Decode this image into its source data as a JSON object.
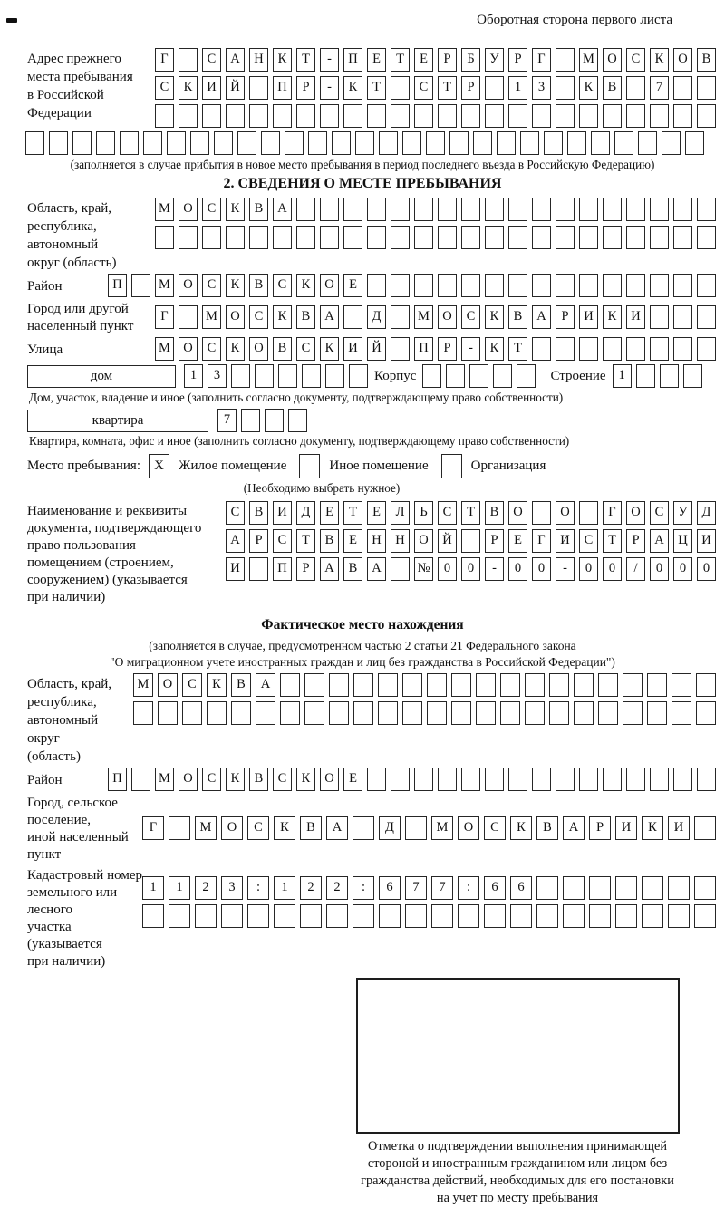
{
  "page": {
    "back_note": "Оборотная сторона первого листа"
  },
  "prev_address": {
    "label_lines": [
      "Адрес прежнего",
      "места пребывания",
      "в Российской",
      "Федерации"
    ],
    "rows": [
      {
        "cells": "Г САНКТ-ПЕТЕРБУРГ МОСКОВ",
        "len": 24
      },
      {
        "cells": "СКИЙ ПР-КТ СТР 13 КВ 7",
        "len": 24
      },
      {
        "cells": "",
        "len": 24
      }
    ],
    "overflow_row": {
      "cells": "",
      "len": 29
    },
    "caption": "(заполняется в случае прибытия в новое место пребывания в период последнего въезда в Российскую Федерацию)"
  },
  "section2": {
    "title": "2. СВЕДЕНИЯ О МЕСТЕ ПРЕБЫВАНИЯ",
    "region": {
      "label_lines": [
        "Область, край,",
        "республика,",
        "автономный",
        "округ (область)"
      ],
      "rows": [
        {
          "cells": "МОСКВА",
          "len": 24
        },
        {
          "cells": "",
          "len": 24
        }
      ]
    },
    "district": {
      "label": "Район",
      "row": {
        "cells": "П МОСКВСКОЕ",
        "len": 26
      }
    },
    "city": {
      "label_lines": [
        "Город или другой",
        "населенный пункт"
      ],
      "row": {
        "cells": "Г МОСКВА Д МОСКВАРИКИ",
        "len": 24
      }
    },
    "street": {
      "label": "Улица",
      "row": {
        "cells": "МОСКОВСКИЙ ПР-КТ",
        "len": 24
      }
    },
    "house": {
      "box_label": "дом",
      "num": {
        "cells": "13",
        "len": 8
      },
      "korpus_label": "Корпус",
      "korpus": {
        "cells": "",
        "len": 5
      },
      "stroenie_label": "Строение",
      "stroenie": {
        "cells": "1",
        "len": 4
      },
      "caption": "Дом, участок, владение и иное (заполнить согласно документу, подтверждающему право собственности)"
    },
    "apartment": {
      "box_label": "квартира",
      "num": {
        "cells": "7",
        "len": 4
      },
      "caption": "Квартира, комната, офис и иное (заполнить согласно документу, подтверждающему право собственности)"
    },
    "stay_type": {
      "label": "Место пребывания:",
      "options": [
        {
          "mark": "X",
          "label": "Жилое помещение"
        },
        {
          "mark": "",
          "label": "Иное помещение"
        },
        {
          "mark": "",
          "label": "Организация"
        }
      ],
      "caption": "(Необходимо выбрать нужное)"
    },
    "document": {
      "label_lines": [
        "Наименование и реквизиты",
        "документа, подтверждающего",
        "право пользования",
        "помещением (строением,",
        "сооружением) (указывается",
        "при наличии)"
      ],
      "rows": [
        {
          "cells": "СВИДЕТЕЛЬСТВО О ГОСУД",
          "len": 21
        },
        {
          "cells": "АРСТВЕННОЙ РЕГИСТРАЦИ",
          "len": 21
        },
        {
          "cells": "И ПРАВА №00-00-00/000",
          "len": 21
        }
      ]
    }
  },
  "actual_location": {
    "title": "Фактическое место нахождения",
    "caption_lines": [
      "(заполняется в случае, предусмотренном частью 2 статьи 21 Федерального закона",
      "\"О миграционном учете иностранных граждан и лиц без гражданства в Российской Федерации\")"
    ],
    "region": {
      "label_lines": [
        "Область, край,",
        "республика,",
        "автономный округ",
        "(область)"
      ],
      "rows": [
        {
          "cells": "МОСКВА",
          "len": 24,
          "size": "m"
        },
        {
          "cells": "",
          "len": 24,
          "size": "m"
        }
      ]
    },
    "district": {
      "label": "Район",
      "row": {
        "cells": "П МОСКВСКОЕ",
        "len": 26
      }
    },
    "city": {
      "label_lines": [
        "Город, сельское поселение,",
        "иной населенный пункт"
      ],
      "row": {
        "cells": "Г МОСКВА Д МОСКВАРИКИ",
        "len": 22,
        "size": "w"
      }
    },
    "cadastre": {
      "label_lines": [
        "Кадастровый номер",
        "земельного или лесного",
        "участка (указывается",
        "при наличии)"
      ],
      "rows": [
        {
          "cells": "1123:122:677:66",
          "len": 22,
          "size": "w"
        },
        {
          "cells": "",
          "len": 22,
          "size": "w"
        }
      ]
    }
  },
  "confirmation": {
    "caption_lines": [
      "Отметка о подтверждении выполнения принимающей",
      "стороной и иностранным гражданином или лицом без",
      "гражданства действий, необходимых для его постановки",
      "на учет по месту пребывания"
    ]
  }
}
